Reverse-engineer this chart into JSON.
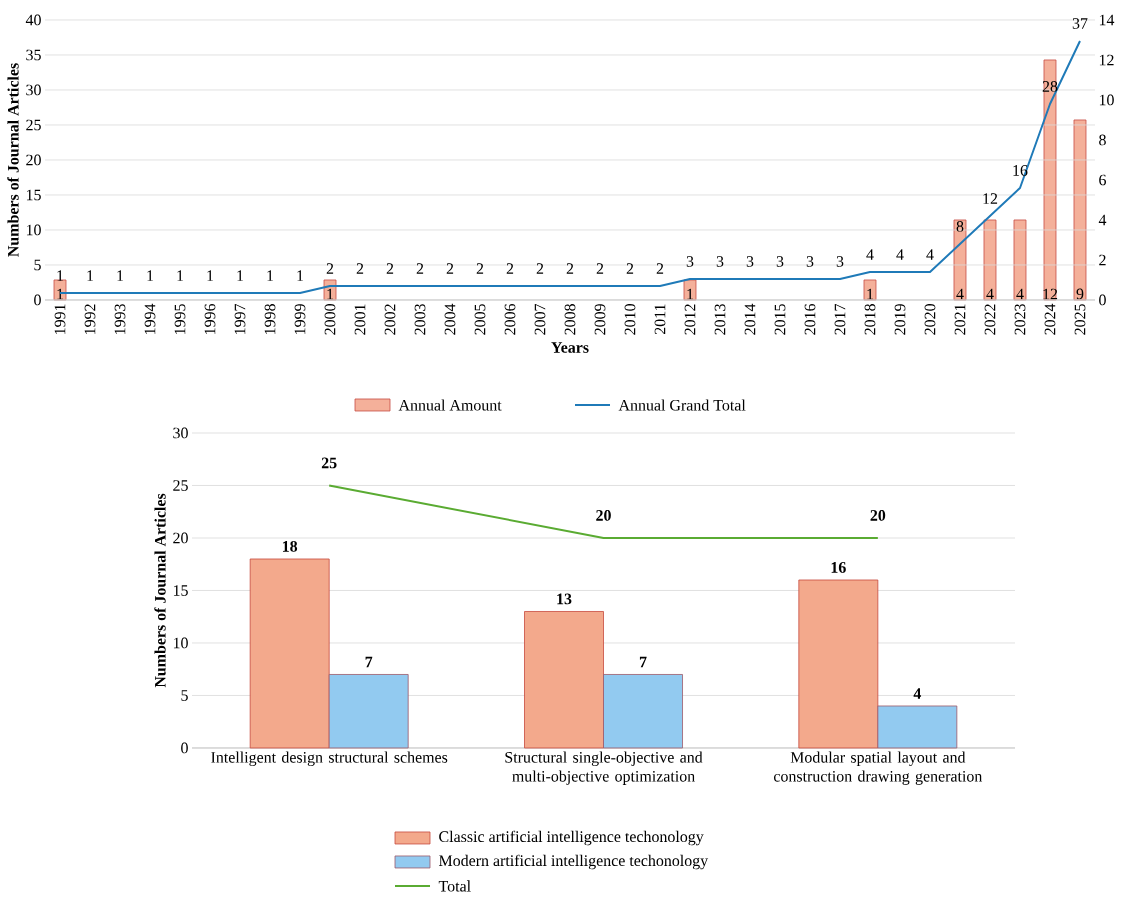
{
  "chart_data": [
    {
      "type": "bar",
      "categories": [
        "1991",
        "1992",
        "1993",
        "1994",
        "1995",
        "1996",
        "1997",
        "1998",
        "1999",
        "2000",
        "2001",
        "2002",
        "2003",
        "2004",
        "2005",
        "2006",
        "2007",
        "2008",
        "2009",
        "2010",
        "2011",
        "2012",
        "2013",
        "2014",
        "2015",
        "2016",
        "2017",
        "2018",
        "2019",
        "2020",
        "2021",
        "2022",
        "2023",
        "2024",
        "2025"
      ],
      "series": [
        {
          "name": "Annual Amount",
          "axis": "y2",
          "color": "#f4b09a",
          "values": [
            1,
            null,
            null,
            null,
            null,
            null,
            null,
            null,
            null,
            1,
            null,
            null,
            null,
            null,
            null,
            null,
            null,
            null,
            null,
            null,
            null,
            1,
            null,
            null,
            null,
            null,
            null,
            1,
            null,
            null,
            4,
            4,
            4,
            12,
            9
          ]
        },
        {
          "name": "Annual Grand Total",
          "type": "line",
          "color": "#1f7ab8",
          "values": [
            1,
            1,
            1,
            1,
            1,
            1,
            1,
            1,
            1,
            2,
            2,
            2,
            2,
            2,
            2,
            2,
            2,
            2,
            2,
            2,
            2,
            3,
            3,
            3,
            3,
            3,
            3,
            4,
            4,
            4,
            8,
            12,
            16,
            28,
            37
          ]
        }
      ],
      "xlabel": "Years",
      "ylabel": "Numbers of Journal Articles",
      "ylim": [
        0,
        40
      ],
      "yticks": [
        0,
        5,
        10,
        15,
        20,
        25,
        30,
        35,
        40
      ],
      "y2lim": [
        0,
        14
      ],
      "y2ticks": [
        0,
        2,
        4,
        6,
        8,
        10,
        12,
        14
      ],
      "grid": "y",
      "legend": "bottom",
      "data_labels": true
    },
    {
      "type": "bar",
      "categories": [
        "Intelligent design structural schemes",
        "Structural single-objective and multi-objective optimization",
        "Modular spatial layout and construction drawing generation"
      ],
      "series": [
        {
          "name": "Classic artificial intelligence techonology",
          "color": "#f3a98c",
          "values": [
            18,
            13,
            16
          ]
        },
        {
          "name": "Modern artificial intelligence techonology",
          "color": "#92caf0",
          "values": [
            7,
            7,
            4
          ]
        },
        {
          "name": "Total",
          "type": "line",
          "color": "#5aab32",
          "values": [
            25,
            20,
            20
          ]
        }
      ],
      "ylabel": "Numbers of Journal Articles",
      "ylim": [
        0,
        30
      ],
      "yticks": [
        0,
        5,
        10,
        15,
        20,
        25,
        30
      ],
      "grid": "y",
      "legend": "bottom",
      "data_labels": true
    }
  ]
}
